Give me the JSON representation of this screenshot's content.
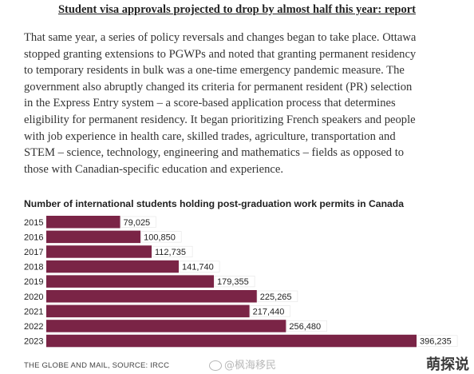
{
  "article": {
    "headline": "Student visa approvals projected to drop by almost half this year: report",
    "body_lines": [
      "That same year, a series of policy reversals and changes began to take place. Ottawa",
      "stopped granting extensions to PGWPs and noted that granting permanent residency",
      "to temporary residents in bulk was a one-time emergency pandemic measure. The",
      "government also abruptly changed its criteria for permanent resident (PR) selection",
      "in the Express Entry system – a score-based application process that determines",
      "eligibility for permanent residency. It began prioritizing French speakers and people",
      "with job experience in health care, skilled trades, agriculture, transportation and",
      "STEM – science, technology, engineering and mathematics – fields as opposed to",
      "those with Canadian-specific education and experience."
    ]
  },
  "chart_data": {
    "type": "bar",
    "orientation": "horizontal",
    "title": "Number of international students holding post-graduation work permits in Canada",
    "categories": [
      "2015",
      "2016",
      "2017",
      "2018",
      "2019",
      "2020",
      "2021",
      "2022",
      "2023"
    ],
    "values": [
      79025,
      100850,
      112735,
      141740,
      179355,
      225265,
      217440,
      256480,
      396235
    ],
    "value_labels": [
      "79,025",
      "100,850",
      "112,735",
      "141,740",
      "179,355",
      "225,265",
      "217,440",
      "256,480",
      "396,235"
    ],
    "xlabel": "",
    "ylabel": "",
    "xlim": [
      0,
      400000
    ],
    "grid": false,
    "bar_color": "#7a2446",
    "label_bg": "#ffffff"
  },
  "footer": {
    "source": "THE GLOBE AND MAIL, SOURCE: IRCC"
  },
  "watermarks": {
    "center": "@枫海移民",
    "corner": "萌探说"
  }
}
